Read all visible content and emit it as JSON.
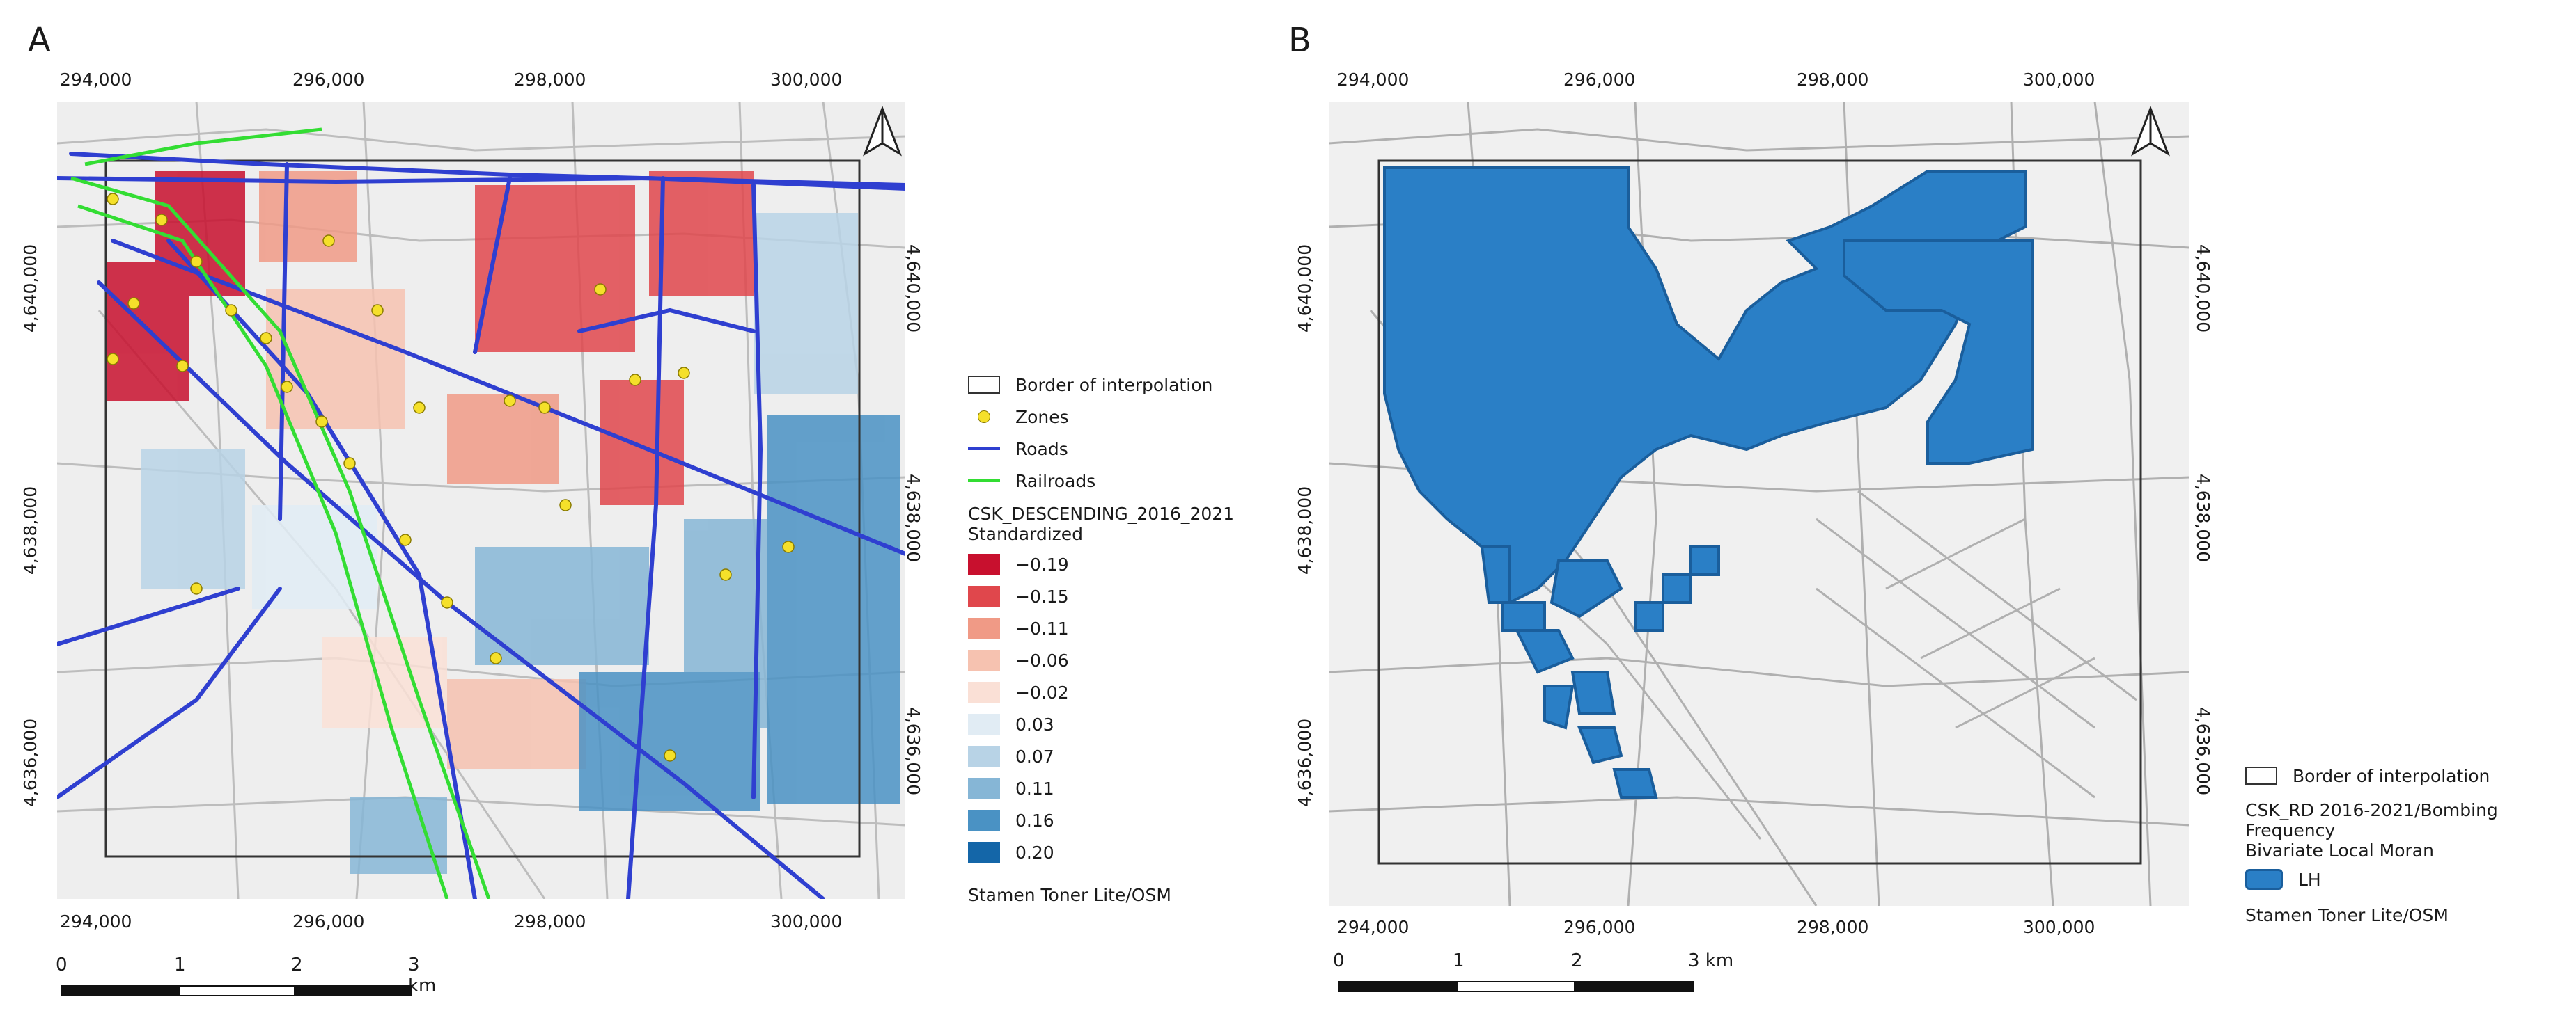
{
  "panel_a": {
    "letter": "A",
    "x_ticks_top": [
      "294,000",
      "296,000",
      "298,000",
      "300,000"
    ],
    "x_ticks_bottom": [
      "294,000",
      "296,000",
      "298,000",
      "300,000"
    ],
    "y_ticks_left": [
      "4,640,000",
      "4,638,000",
      "4,636,000"
    ],
    "y_ticks_right": [
      "4,640,000",
      "4,638,000",
      "4,636,000"
    ],
    "legend": {
      "border_label": "Border of interpolation",
      "zones_label": "Zones",
      "roads_label": "Roads",
      "railroads_label": "Railroads",
      "layer_title": "CSK_DESCENDING_2016_2021",
      "layer_subtitle": "Standardized",
      "classes": [
        {
          "label": "−0.19",
          "color": "#c8102e"
        },
        {
          "label": "−0.15",
          "color": "#e0474c"
        },
        {
          "label": "−0.11",
          "color": "#f09a86"
        },
        {
          "label": "−0.06",
          "color": "#f6c2b0"
        },
        {
          "label": "−0.02",
          "color": "#fae0d6"
        },
        {
          "label": "0.03",
          "color": "#e1ecf4"
        },
        {
          "label": "0.07",
          "color": "#b8d3e6"
        },
        {
          "label": "0.11",
          "color": "#86b6d6"
        },
        {
          "label": "0.16",
          "color": "#4a92c4"
        },
        {
          "label": "0.20",
          "color": "#1466a8"
        }
      ],
      "basemap_credit": "Stamen Toner Lite/OSM"
    },
    "scale_bar": {
      "labels": [
        "0",
        "1",
        "2",
        "3 km"
      ]
    }
  },
  "panel_b": {
    "letter": "B",
    "x_ticks_top": [
      "294,000",
      "296,000",
      "298,000",
      "300,000"
    ],
    "x_ticks_bottom": [
      "294,000",
      "296,000",
      "298,000",
      "300,000"
    ],
    "y_ticks_left": [
      "4,640,000",
      "4,638,000",
      "4,636,000"
    ],
    "y_ticks_right": [
      "4,640,000",
      "4,638,000",
      "4,636,000"
    ],
    "legend": {
      "border_label": "Border of interpolation",
      "layer_title": "CSK_RD 2016-2021/Bombing Frequency",
      "layer_subtitle": "Bivariate Local Moran",
      "lh_label": "LH",
      "lh_color": "#2a7fc6",
      "basemap_credit": "Stamen Toner Lite/OSM"
    },
    "scale_bar": {
      "labels": [
        "0",
        "1",
        "2",
        "3 km"
      ]
    }
  },
  "colors": {
    "roads": "#2f3fd0",
    "railroads": "#33dd33",
    "zones": "#f5e02a",
    "lh_cluster": "#2a7fc6"
  }
}
